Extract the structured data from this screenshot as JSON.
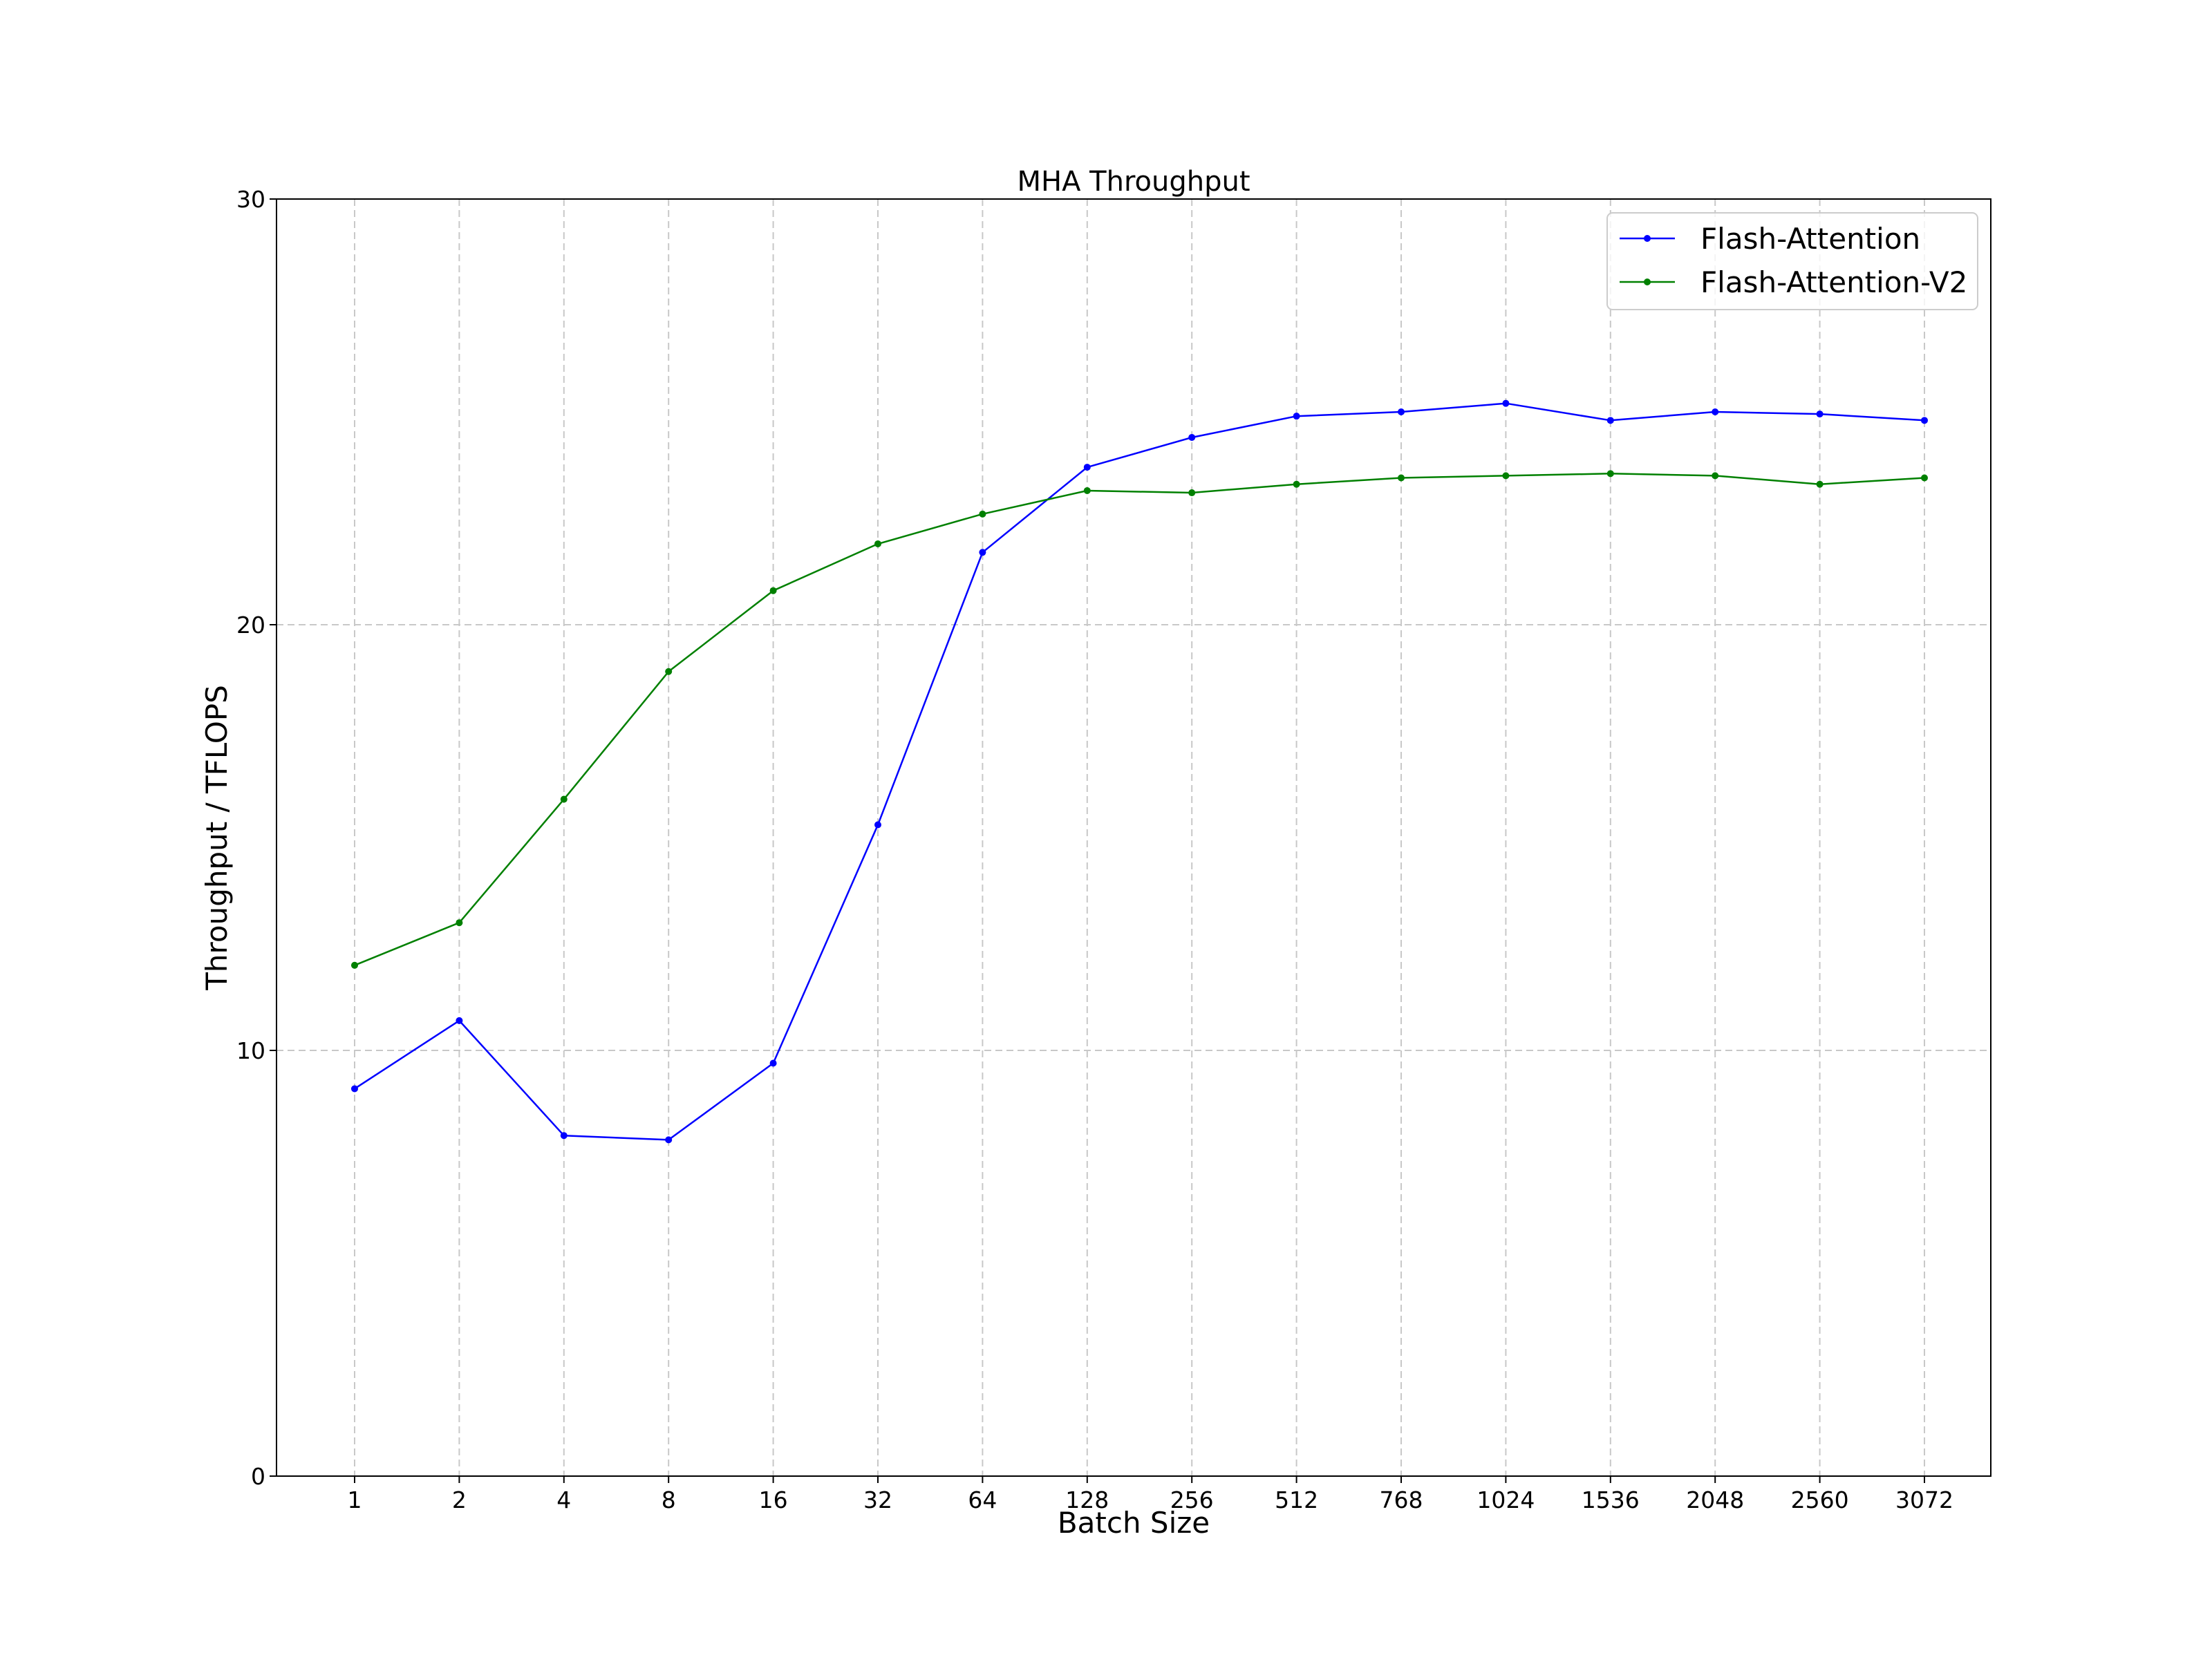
{
  "chart_data": {
    "type": "line",
    "title": "MHA Throughput",
    "xlabel": "Batch Size",
    "ylabel": "Throughput / TFLOPS",
    "categories": [
      "1",
      "2",
      "4",
      "8",
      "16",
      "32",
      "64",
      "128",
      "256",
      "512",
      "768",
      "1024",
      "1536",
      "2048",
      "2560",
      "3072"
    ],
    "ylim": [
      0,
      30
    ],
    "yticks": [
      0,
      10,
      20,
      30
    ],
    "grid": true,
    "legend_position": "top-right",
    "series": [
      {
        "name": "Flash-Attention",
        "color": "#0000ff",
        "values": [
          9.1,
          10.7,
          8.0,
          7.9,
          9.7,
          15.3,
          21.7,
          23.7,
          24.4,
          24.9,
          25.0,
          25.2,
          24.8,
          25.0,
          24.95,
          24.8
        ]
      },
      {
        "name": "Flash-Attention-V2",
        "color": "#008000",
        "values": [
          12.0,
          13.0,
          15.9,
          18.9,
          20.8,
          21.9,
          22.6,
          23.15,
          23.1,
          23.3,
          23.45,
          23.5,
          23.55,
          23.5,
          23.3,
          23.45
        ]
      }
    ]
  }
}
